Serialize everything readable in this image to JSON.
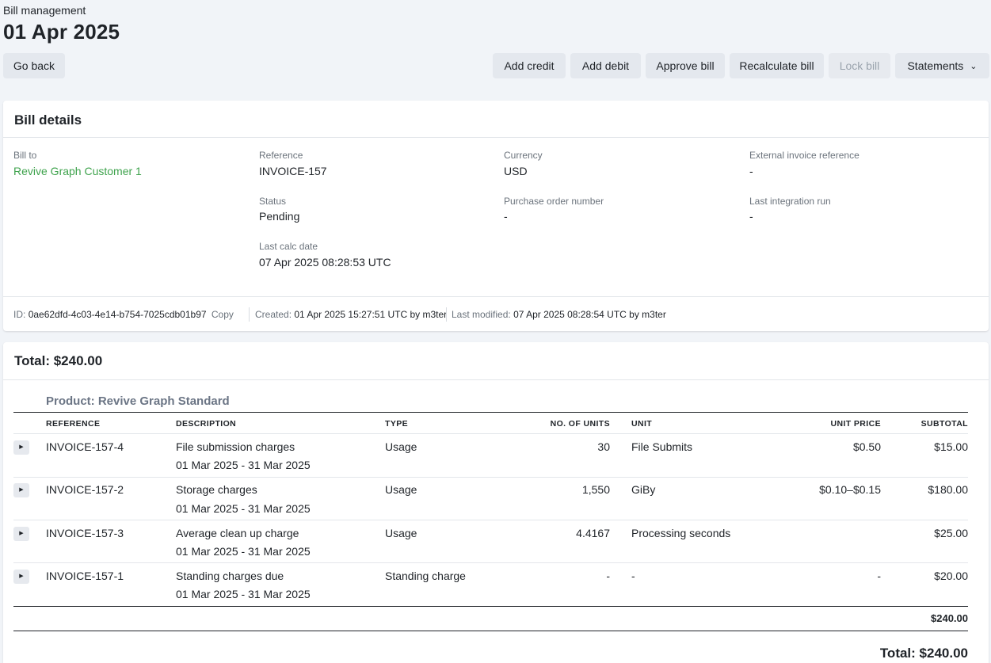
{
  "header": {
    "breadcrumb": "Bill management",
    "title": "01 Apr 2025",
    "buttons": {
      "go_back": "Go back",
      "add_credit": "Add credit",
      "add_debit": "Add debit",
      "approve_bill": "Approve bill",
      "recalculate_bill": "Recalculate bill",
      "lock_bill": "Lock bill",
      "statements": "Statements"
    }
  },
  "bill_details": {
    "title": "Bill details",
    "bill_to": {
      "label": "Bill to",
      "value": "Revive Graph Customer 1"
    },
    "reference": {
      "label": "Reference",
      "value": "INVOICE-157"
    },
    "currency": {
      "label": "Currency",
      "value": "USD"
    },
    "external_invoice_reference": {
      "label": "External invoice reference",
      "value": "-"
    },
    "status": {
      "label": "Status",
      "value": "Pending"
    },
    "purchase_order_number": {
      "label": "Purchase order number",
      "value": "-"
    },
    "last_integration_run": {
      "label": "Last integration run",
      "value": "-"
    },
    "last_calc_date": {
      "label": "Last calc date",
      "value": "07 Apr 2025 08:28:53 UTC"
    },
    "meta": {
      "id_label": "ID:",
      "id_value": "0ae62dfd-4c03-4e14-b754-7025cdb01b97",
      "copy": "Copy",
      "created_label": "Created:",
      "created_value": "01 Apr 2025 15:27:51 UTC by m3ter",
      "modified_label": "Last modified:",
      "modified_value": "07 Apr 2025 08:28:54 UTC by m3ter"
    }
  },
  "totals_card": {
    "title": "Total: $240.00",
    "product": "Product: Revive Graph Standard",
    "columns": {
      "reference": "REFERENCE",
      "description": "DESCRIPTION",
      "type": "TYPE",
      "units": "NO. OF UNITS",
      "unit": "UNIT",
      "unit_price": "UNIT PRICE",
      "subtotal": "SUBTOTAL"
    },
    "rows": [
      {
        "reference": "INVOICE-157-4",
        "description": "File submission charges",
        "period": "01 Mar 2025 - 31 Mar 2025",
        "type": "Usage",
        "units": "30",
        "unit": "File Submits",
        "unit_price": "$0.50",
        "subtotal": "$15.00"
      },
      {
        "reference": "INVOICE-157-2",
        "description": "Storage charges",
        "period": "01 Mar 2025 - 31 Mar 2025",
        "type": "Usage",
        "units": "1,550",
        "unit": "GiBy",
        "unit_price": "$0.10–$0.15",
        "subtotal": "$180.00"
      },
      {
        "reference": "INVOICE-157-3",
        "description": "Average clean up charge",
        "period": "01 Mar 2025 - 31 Mar 2025",
        "type": "Usage",
        "units": "4.4167",
        "unit": "Processing seconds",
        "unit_price": "",
        "subtotal": "$25.00"
      },
      {
        "reference": "INVOICE-157-1",
        "description": "Standing charges due",
        "period": "01 Mar 2025 - 31 Mar 2025",
        "type": "Standing charge",
        "units": "-",
        "unit": "-",
        "unit_price": "-",
        "subtotal": "$20.00"
      }
    ],
    "product_subtotal": "$240.00",
    "grand_total": "Total: $240.00"
  },
  "colors": {
    "page_background": "#f1f4f8",
    "link": "#3fa34d",
    "button_background": "#e4e8ee"
  }
}
